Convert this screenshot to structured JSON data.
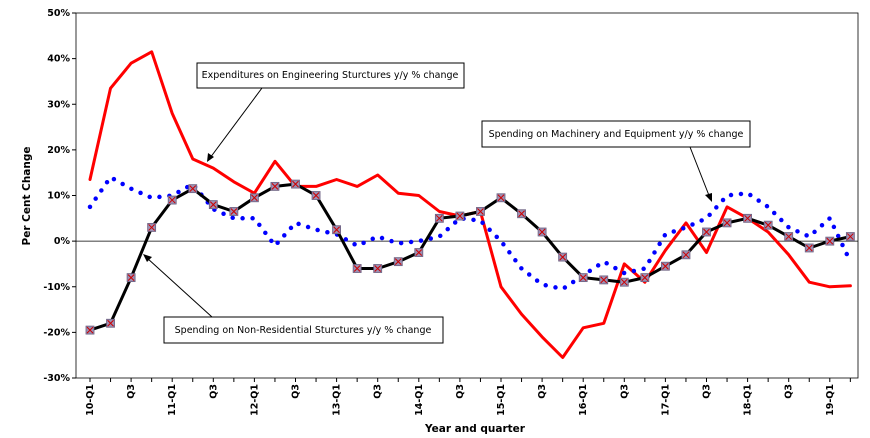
{
  "chart_data": {
    "type": "line",
    "x_label": "Year and quarter",
    "y_label": "Per Cent Change",
    "categories": [
      "10-Q1",
      null,
      "Q3",
      null,
      "11-Q1",
      null,
      "Q3",
      null,
      "12-Q1",
      null,
      "Q3",
      null,
      "13-Q1",
      null,
      "Q3",
      null,
      "14-Q1",
      null,
      "Q3",
      null,
      "15-Q1",
      null,
      "Q3",
      null,
      "16-Q1",
      null,
      "Q3",
      null,
      "17-Q1",
      null,
      "Q3",
      null,
      "18-Q1",
      null,
      "Q3",
      null,
      "19-Q1",
      null
    ],
    "series": [
      {
        "name": "Expenditures on Engineering Sturctures y/y % change",
        "color": "#ff0000",
        "style": "solid",
        "values": [
          13.5,
          33.5,
          39,
          41.5,
          28,
          18,
          16,
          13,
          10.5,
          17.5,
          12,
          12,
          13.5,
          12,
          14.5,
          10.5,
          10,
          6.5,
          5.5,
          6.5,
          -10,
          -16,
          -21,
          -25.5,
          -19,
          -18,
          -5,
          -9,
          -2,
          4,
          -2.5,
          7.5,
          5,
          2,
          -3,
          -9,
          -10,
          -9.8
        ]
      },
      {
        "name": "Spending on Machinery and Equipment y/y % change",
        "color": "#0000ff",
        "style": "dotted",
        "values": [
          7.5,
          14,
          11.5,
          9.5,
          10,
          12.5,
          7,
          5,
          5,
          -1,
          4,
          2.5,
          1.5,
          -1,
          1,
          -0.5,
          0,
          1,
          5,
          4.5,
          0,
          -6,
          -9.5,
          -10.5,
          -7.5,
          -4.5,
          -7,
          -6,
          1.5,
          3,
          5,
          10,
          10.5,
          7.5,
          3,
          1,
          5,
          -4.5
        ]
      },
      {
        "name": "Spending on Non-Residential Sturctures y/y % change",
        "color": "#000000",
        "style": "markers",
        "values": [
          -19.5,
          -18,
          -8,
          3,
          9,
          11.5,
          8,
          6.5,
          9.5,
          12,
          12.5,
          10,
          2.5,
          -6,
          -6,
          -4.5,
          -2.5,
          5,
          5.5,
          6.5,
          9.5,
          6,
          2,
          -3.5,
          -8,
          -8.5,
          -9,
          -8,
          -5.5,
          -3,
          2,
          4,
          5,
          3.5,
          1,
          -1.5,
          0,
          1
        ]
      }
    ],
    "ylim": [
      -30,
      50
    ],
    "yticks": [
      {
        "value": -30,
        "label": "-30%"
      },
      {
        "value": -20,
        "label": "-20%"
      },
      {
        "value": -10,
        "label": "-10%"
      },
      {
        "value": 0,
        "label": "0%"
      },
      {
        "value": 10,
        "label": "10%"
      },
      {
        "value": 20,
        "label": "20%"
      },
      {
        "value": 30,
        "label": "30%"
      },
      {
        "value": 40,
        "label": "40%"
      },
      {
        "value": 50,
        "label": "50%"
      }
    ]
  }
}
